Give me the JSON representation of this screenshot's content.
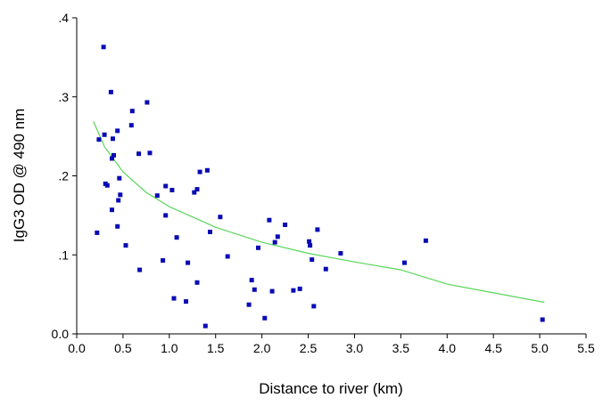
{
  "chart_data": {
    "type": "scatter",
    "xlabel": "Distance to river (km)",
    "ylabel": "IgG3 OD @ 490 nm",
    "xlim": [
      0.0,
      5.5
    ],
    "ylim": [
      0.0,
      0.4
    ],
    "x_ticks": [
      0.0,
      0.5,
      1.0,
      1.5,
      2.0,
      2.5,
      3.0,
      3.5,
      4.0,
      4.5,
      5.0,
      5.5
    ],
    "x_tick_labels": [
      "0.0",
      "0.5",
      "1.0",
      "1.5",
      "2.0",
      "2.5",
      "3.0",
      "3.5",
      "4.0",
      "4.5",
      "5.0",
      "5.5"
    ],
    "y_ticks": [
      0.0,
      0.1,
      0.2,
      0.3,
      0.4
    ],
    "y_tick_labels": [
      "0.0",
      ".1",
      ".2",
      ".3",
      ".4"
    ],
    "grid": false,
    "legend": "none",
    "colors": {
      "points": "#0a0ab4",
      "fit": "#5ad65a",
      "axis": "#000000"
    },
    "points": [
      {
        "x": 0.22,
        "y": 0.128
      },
      {
        "x": 0.24,
        "y": 0.246
      },
      {
        "x": 0.29,
        "y": 0.363
      },
      {
        "x": 0.3,
        "y": 0.252
      },
      {
        "x": 0.31,
        "y": 0.19
      },
      {
        "x": 0.33,
        "y": 0.188
      },
      {
        "x": 0.37,
        "y": 0.306
      },
      {
        "x": 0.38,
        "y": 0.157
      },
      {
        "x": 0.38,
        "y": 0.222
      },
      {
        "x": 0.39,
        "y": 0.247
      },
      {
        "x": 0.4,
        "y": 0.226
      },
      {
        "x": 0.44,
        "y": 0.257
      },
      {
        "x": 0.44,
        "y": 0.136
      },
      {
        "x": 0.45,
        "y": 0.169
      },
      {
        "x": 0.46,
        "y": 0.197
      },
      {
        "x": 0.47,
        "y": 0.176
      },
      {
        "x": 0.53,
        "y": 0.112
      },
      {
        "x": 0.59,
        "y": 0.264
      },
      {
        "x": 0.6,
        "y": 0.282
      },
      {
        "x": 0.67,
        "y": 0.228
      },
      {
        "x": 0.68,
        "y": 0.081
      },
      {
        "x": 0.76,
        "y": 0.293
      },
      {
        "x": 0.79,
        "y": 0.229
      },
      {
        "x": 0.87,
        "y": 0.175
      },
      {
        "x": 0.93,
        "y": 0.093
      },
      {
        "x": 0.96,
        "y": 0.15
      },
      {
        "x": 0.96,
        "y": 0.187
      },
      {
        "x": 1.03,
        "y": 0.182
      },
      {
        "x": 1.05,
        "y": 0.045
      },
      {
        "x": 1.08,
        "y": 0.122
      },
      {
        "x": 1.18,
        "y": 0.041
      },
      {
        "x": 1.2,
        "y": 0.09
      },
      {
        "x": 1.27,
        "y": 0.179
      },
      {
        "x": 1.3,
        "y": 0.065
      },
      {
        "x": 1.3,
        "y": 0.183
      },
      {
        "x": 1.33,
        "y": 0.205
      },
      {
        "x": 1.39,
        "y": 0.01
      },
      {
        "x": 1.41,
        "y": 0.207
      },
      {
        "x": 1.44,
        "y": 0.129
      },
      {
        "x": 1.55,
        "y": 0.148
      },
      {
        "x": 1.63,
        "y": 0.098
      },
      {
        "x": 1.86,
        "y": 0.037
      },
      {
        "x": 1.89,
        "y": 0.068
      },
      {
        "x": 1.92,
        "y": 0.056
      },
      {
        "x": 1.96,
        "y": 0.109
      },
      {
        "x": 2.03,
        "y": 0.02
      },
      {
        "x": 2.08,
        "y": 0.144
      },
      {
        "x": 2.11,
        "y": 0.054
      },
      {
        "x": 2.14,
        "y": 0.116
      },
      {
        "x": 2.17,
        "y": 0.123
      },
      {
        "x": 2.25,
        "y": 0.138
      },
      {
        "x": 2.34,
        "y": 0.055
      },
      {
        "x": 2.41,
        "y": 0.057
      },
      {
        "x": 2.51,
        "y": 0.117
      },
      {
        "x": 2.52,
        "y": 0.112
      },
      {
        "x": 2.54,
        "y": 0.094
      },
      {
        "x": 2.56,
        "y": 0.035
      },
      {
        "x": 2.6,
        "y": 0.132
      },
      {
        "x": 2.69,
        "y": 0.082
      },
      {
        "x": 2.85,
        "y": 0.102
      },
      {
        "x": 3.54,
        "y": 0.09
      },
      {
        "x": 3.77,
        "y": 0.118
      },
      {
        "x": 5.03,
        "y": 0.018
      }
    ],
    "fit_curve": {
      "type": "log",
      "x": [
        0.18,
        0.3,
        0.5,
        0.75,
        1.0,
        1.5,
        2.0,
        2.5,
        3.0,
        3.5,
        4.0,
        4.5,
        5.05
      ],
      "y": [
        0.269,
        0.237,
        0.205,
        0.179,
        0.161,
        0.135,
        0.116,
        0.102,
        0.091,
        0.081,
        0.063,
        0.052,
        0.04
      ]
    }
  }
}
